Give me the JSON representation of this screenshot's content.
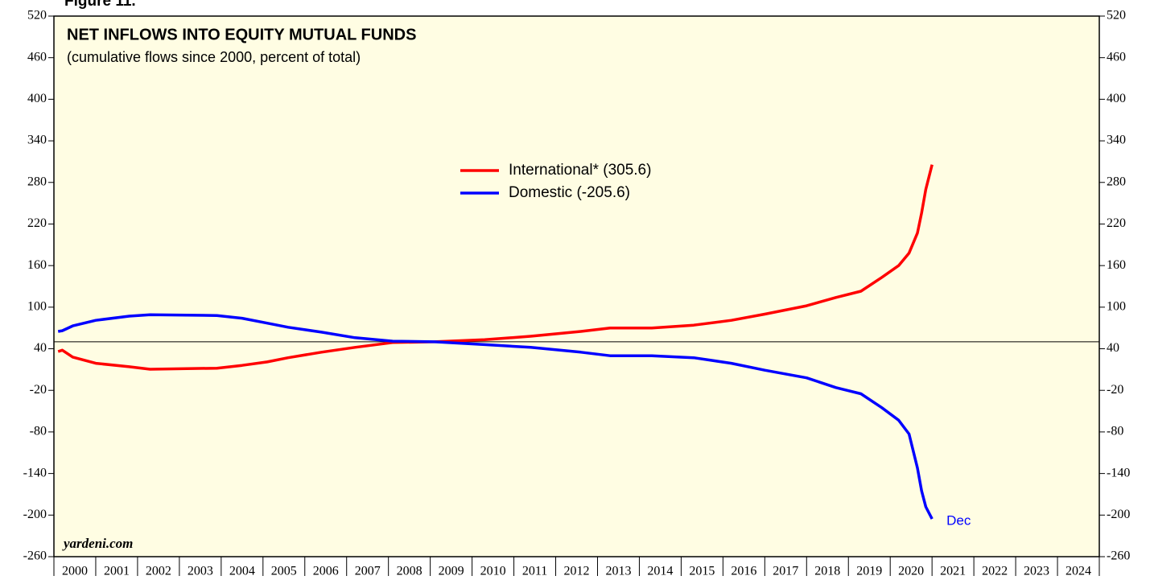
{
  "chart_data": {
    "type": "line",
    "figure_label": "Figure 11.",
    "title": "NET INFLOWS INTO EQUITY MUTUAL FUNDS",
    "subtitle": "(cumulative flows since 2000, percent of total)",
    "source": "yardeni.com",
    "annotation": "Dec",
    "x": [
      2000.1,
      2000.2,
      2000.45,
      2001.0,
      2001.8,
      2002.3,
      2003.9,
      2004.5,
      2005.1,
      2005.6,
      2006.4,
      2007.2,
      2008.1,
      2009.1,
      2010.3,
      2011.4,
      2012.6,
      2013.3,
      2014.3,
      2015.3,
      2016.2,
      2017.0,
      2018.0,
      2018.7,
      2019.3,
      2019.8,
      2020.2,
      2020.45,
      2020.65,
      2020.75,
      2020.85,
      2021.0
    ],
    "series": [
      {
        "name": "International* (305.6)",
        "color": "#ff0000",
        "values": [
          36,
          38,
          28,
          19,
          14,
          10.5,
          12,
          16,
          21,
          27,
          35,
          42,
          49,
          50,
          53,
          58,
          65,
          70,
          70,
          74,
          81,
          90,
          102,
          114,
          123,
          143,
          160,
          178,
          207,
          236,
          270,
          305.6
        ]
      },
      {
        "name": "Domestic (-205.6)",
        "color": "#0000ff",
        "values": [
          65,
          66,
          73,
          81,
          87,
          89,
          88,
          84,
          77,
          71,
          64,
          56,
          51,
          50,
          46,
          42,
          35,
          30,
          30,
          27,
          19,
          9,
          -2,
          -16,
          -25,
          -45,
          -63,
          -83,
          -132,
          -165,
          -188,
          -205.6
        ]
      }
    ],
    "xlim": [
      2000,
      2025
    ],
    "xticks": [
      2000,
      2001,
      2002,
      2003,
      2004,
      2005,
      2006,
      2007,
      2008,
      2009,
      2010,
      2011,
      2012,
      2013,
      2014,
      2015,
      2016,
      2017,
      2018,
      2019,
      2020,
      2021,
      2022,
      2023,
      2024
    ],
    "ylim": [
      -260,
      520
    ],
    "yticks": [
      520,
      460,
      400,
      340,
      280,
      220,
      160,
      100,
      40,
      -20,
      -80,
      -140,
      -200,
      -260
    ],
    "reference_line": 50,
    "background": "#fffde3"
  }
}
